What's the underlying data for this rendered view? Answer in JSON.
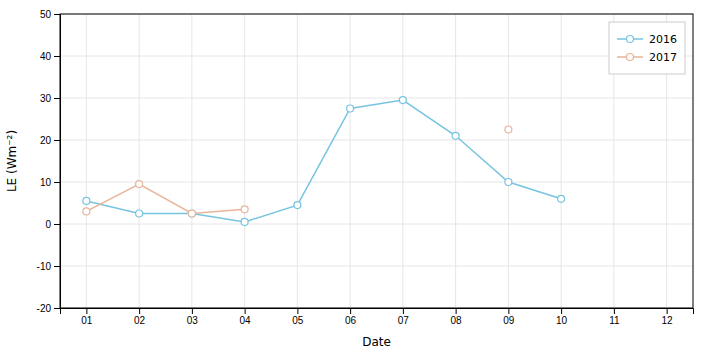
{
  "chart_data": {
    "type": "line",
    "xlabel": "Date",
    "ylabel": "LE (Wm⁻²)",
    "x": [
      1,
      2,
      3,
      4,
      5,
      6,
      7,
      8,
      9,
      10,
      11,
      12
    ],
    "xlim": [
      0.5,
      12.5
    ],
    "xticks": [
      {
        "value": 1,
        "label": "01"
      },
      {
        "value": 2,
        "label": "02"
      },
      {
        "value": 3,
        "label": "03"
      },
      {
        "value": 4,
        "label": "04"
      },
      {
        "value": 5,
        "label": "05"
      },
      {
        "value": 6,
        "label": "06"
      },
      {
        "value": 7,
        "label": "07"
      },
      {
        "value": 8,
        "label": "08"
      },
      {
        "value": 9,
        "label": "09"
      },
      {
        "value": 10,
        "label": "10"
      },
      {
        "value": 11,
        "label": "11"
      },
      {
        "value": 12,
        "label": "12"
      }
    ],
    "ylim": [
      -20,
      50
    ],
    "yticks": [
      -20,
      -10,
      0,
      10,
      20,
      30,
      40,
      50
    ],
    "grid": true,
    "legend": "upper right",
    "marker": "circle",
    "series": [
      {
        "name": "2016",
        "color": "#77c4e0",
        "values": [
          5.5,
          2.5,
          2.5,
          0.5,
          4.5,
          27.5,
          29.5,
          21.0,
          10.0,
          6.0,
          null,
          null
        ]
      },
      {
        "name": "2017",
        "color": "#e8b49a",
        "values": [
          3.0,
          9.5,
          2.5,
          3.5,
          null,
          null,
          null,
          null,
          22.5,
          null,
          null,
          null
        ]
      }
    ]
  }
}
